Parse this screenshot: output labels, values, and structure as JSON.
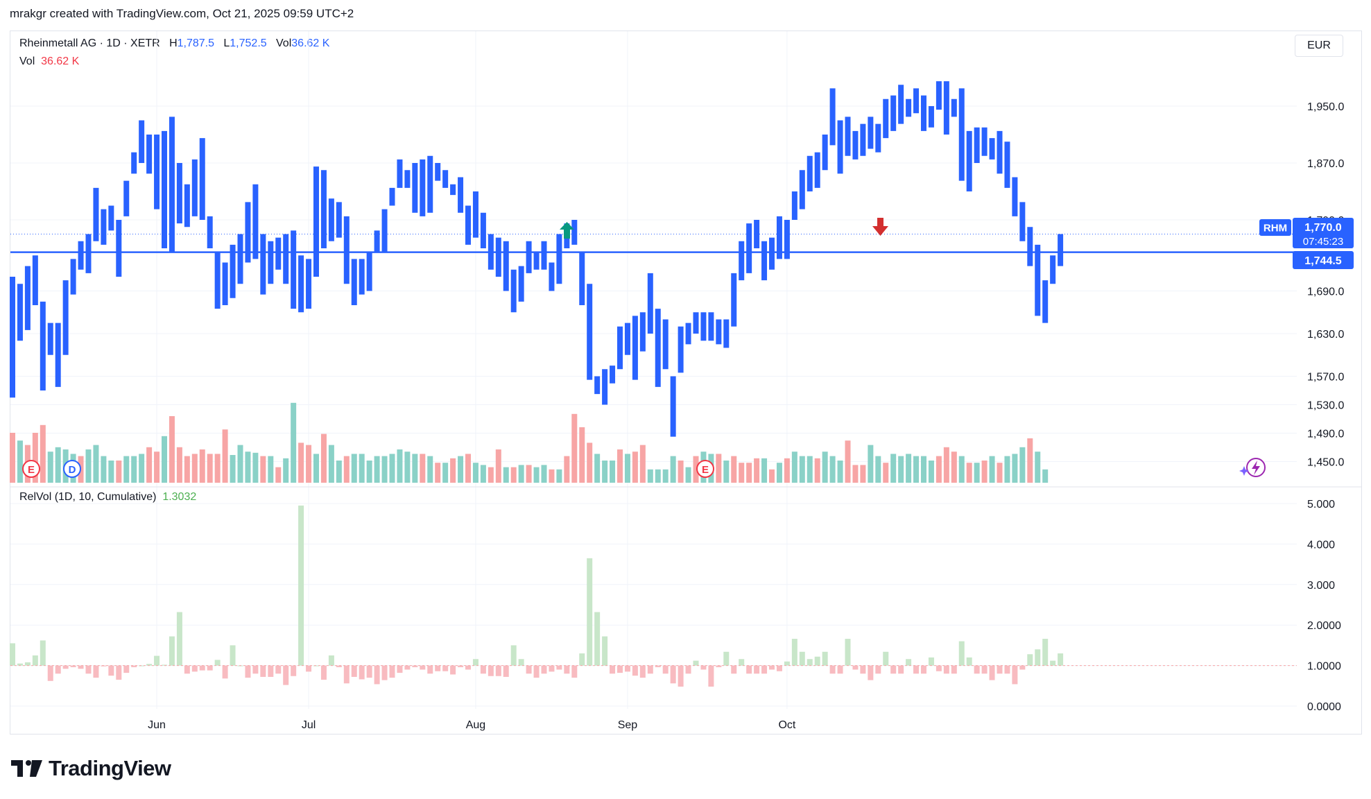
{
  "header": {
    "attribution": "mrakgr created with TradingView.com, Oct 21, 2025 09:59 UTC+2"
  },
  "legend": {
    "symbol": "Rheinmetall AG · 1D · XETR",
    "h_label": "H",
    "h_value": "1,787.5",
    "l_label": "L",
    "l_value": "1,752.5",
    "vol_label": "Vol",
    "vol_value": "36.62 K",
    "vol_row_label": "Vol",
    "vol_row_value": "36.62 K"
  },
  "currency": "EUR",
  "badges": {
    "ticker": "RHM",
    "price": "1,770.0",
    "countdown": "07:45:23",
    "line_price": "1,744.5"
  },
  "relvol": {
    "label": "RelVol (1D, 10, Cumulative)",
    "value": "1.3032"
  },
  "events": {
    "earnings": "E",
    "dividend": "D"
  },
  "logo": {
    "text": "TradingView"
  },
  "colors": {
    "bar": "#2962ff",
    "up_vol": "#8ad1c7",
    "down_vol": "#f7a5a5",
    "relvol_up": "#c8e6c9",
    "relvol_down": "#f8bbc0",
    "line": "#2962ff"
  },
  "chart_data": [
    {
      "type": "bar",
      "title": "Rheinmetall AG · 1D · XETR",
      "price_ticks": [
        "1,950.0",
        "1,870.0",
        "1,790.0",
        "1,690.0",
        "1,630.0",
        "1,570.0",
        "1,530.0",
        "1,490.0",
        "1,450.0"
      ],
      "x_ticks": [
        {
          "label": "Jun",
          "index": 19
        },
        {
          "label": "Jul",
          "index": 39
        },
        {
          "label": "Aug",
          "index": 61
        },
        {
          "label": "Sep",
          "index": 81
        },
        {
          "label": "Oct",
          "index": 102
        }
      ],
      "ylim": [
        1430,
        2010
      ],
      "horizontal_line": 1744.5,
      "last_price_dotted": 1770.0,
      "range_bars": [
        [
          1540,
          1710
        ],
        [
          1620,
          1700
        ],
        [
          1635,
          1725
        ],
        [
          1670,
          1740
        ],
        [
          1550,
          1675
        ],
        [
          1600,
          1645
        ],
        [
          1555,
          1645
        ],
        [
          1600,
          1705
        ],
        [
          1685,
          1735
        ],
        [
          1720,
          1760
        ],
        [
          1715,
          1770
        ],
        [
          1760,
          1835
        ],
        [
          1755,
          1805
        ],
        [
          1775,
          1810
        ],
        [
          1710,
          1790
        ],
        [
          1795,
          1845
        ],
        [
          1855,
          1885
        ],
        [
          1870,
          1930
        ],
        [
          1855,
          1910
        ],
        [
          1805,
          1910
        ],
        [
          1750,
          1915
        ],
        [
          1745,
          1935
        ],
        [
          1785,
          1870
        ],
        [
          1780,
          1840
        ],
        [
          1795,
          1875
        ],
        [
          1790,
          1905
        ],
        [
          1750,
          1795
        ],
        [
          1665,
          1745
        ],
        [
          1670,
          1730
        ],
        [
          1680,
          1755
        ],
        [
          1700,
          1770
        ],
        [
          1730,
          1815
        ],
        [
          1735,
          1840
        ],
        [
          1685,
          1770
        ],
        [
          1700,
          1760
        ],
        [
          1720,
          1765
        ],
        [
          1700,
          1770
        ],
        [
          1665,
          1775
        ],
        [
          1660,
          1740
        ],
        [
          1665,
          1735
        ],
        [
          1710,
          1865
        ],
        [
          1750,
          1860
        ],
        [
          1760,
          1820
        ],
        [
          1765,
          1815
        ],
        [
          1700,
          1795
        ],
        [
          1670,
          1735
        ],
        [
          1685,
          1735
        ],
        [
          1690,
          1745
        ],
        [
          1745,
          1775
        ],
        [
          1745,
          1805
        ],
        [
          1810,
          1835
        ],
        [
          1835,
          1875
        ],
        [
          1835,
          1860
        ],
        [
          1800,
          1870
        ],
        [
          1795,
          1875
        ],
        [
          1800,
          1880
        ],
        [
          1845,
          1870
        ],
        [
          1835,
          1860
        ],
        [
          1825,
          1840
        ],
        [
          1800,
          1850
        ],
        [
          1755,
          1810
        ],
        [
          1765,
          1830
        ],
        [
          1750,
          1800
        ],
        [
          1720,
          1770
        ],
        [
          1710,
          1765
        ],
        [
          1690,
          1760
        ],
        [
          1660,
          1720
        ],
        [
          1675,
          1725
        ],
        [
          1715,
          1760
        ],
        [
          1720,
          1745
        ],
        [
          1720,
          1760
        ],
        [
          1690,
          1730
        ],
        [
          1700,
          1770
        ],
        [
          1750,
          1785
        ],
        [
          1755,
          1790
        ],
        [
          1670,
          1745
        ],
        [
          1565,
          1700
        ],
        [
          1545,
          1570
        ],
        [
          1530,
          1580
        ],
        [
          1560,
          1585
        ],
        [
          1580,
          1640
        ],
        [
          1600,
          1645
        ],
        [
          1565,
          1655
        ],
        [
          1605,
          1660
        ],
        [
          1630,
          1715
        ],
        [
          1555,
          1665
        ],
        [
          1580,
          1650
        ],
        [
          1485,
          1570
        ],
        [
          1575,
          1640
        ],
        [
          1615,
          1645
        ],
        [
          1630,
          1660
        ],
        [
          1620,
          1660
        ],
        [
          1620,
          1660
        ],
        [
          1615,
          1650
        ],
        [
          1610,
          1650
        ],
        [
          1640,
          1715
        ],
        [
          1705,
          1760
        ],
        [
          1715,
          1785
        ],
        [
          1750,
          1790
        ],
        [
          1705,
          1760
        ],
        [
          1720,
          1765
        ],
        [
          1735,
          1795
        ],
        [
          1735,
          1790
        ],
        [
          1790,
          1830
        ],
        [
          1805,
          1860
        ],
        [
          1830,
          1880
        ],
        [
          1835,
          1885
        ],
        [
          1860,
          1910
        ],
        [
          1895,
          1975
        ],
        [
          1855,
          1930
        ],
        [
          1880,
          1935
        ],
        [
          1875,
          1915
        ],
        [
          1880,
          1925
        ],
        [
          1890,
          1935
        ],
        [
          1885,
          1925
        ],
        [
          1905,
          1960
        ],
        [
          1915,
          1965
        ],
        [
          1925,
          1980
        ],
        [
          1935,
          1960
        ],
        [
          1940,
          1975
        ],
        [
          1915,
          1965
        ],
        [
          1920,
          1950
        ],
        [
          1945,
          1985
        ],
        [
          1910,
          1985
        ],
        [
          1935,
          1960
        ],
        [
          1845,
          1975
        ],
        [
          1830,
          1915
        ],
        [
          1870,
          1920
        ],
        [
          1880,
          1920
        ],
        [
          1875,
          1905
        ],
        [
          1855,
          1915
        ],
        [
          1835,
          1900
        ],
        [
          1795,
          1850
        ],
        [
          1760,
          1815
        ],
        [
          1725,
          1780
        ],
        [
          1655,
          1755
        ],
        [
          1645,
          1705
        ],
        [
          1700,
          1740
        ],
        [
          1725,
          1770
        ]
      ],
      "volume_bars": [
        [
          "d",
          45
        ],
        [
          "u",
          38
        ],
        [
          "d",
          34
        ],
        [
          "d",
          45
        ],
        [
          "d",
          52
        ],
        [
          "u",
          28
        ],
        [
          "u",
          32
        ],
        [
          "u",
          30
        ],
        [
          "u",
          26
        ],
        [
          "d",
          24
        ],
        [
          "u",
          30
        ],
        [
          "u",
          34
        ],
        [
          "u",
          24
        ],
        [
          "u",
          20
        ],
        [
          "d",
          20
        ],
        [
          "u",
          24
        ],
        [
          "u",
          24
        ],
        [
          "u",
          26
        ],
        [
          "d",
          32
        ],
        [
          "d",
          28
        ],
        [
          "u",
          42
        ],
        [
          "d",
          60
        ],
        [
          "d",
          32
        ],
        [
          "d",
          24
        ],
        [
          "d",
          26
        ],
        [
          "d",
          30
        ],
        [
          "d",
          26
        ],
        [
          "d",
          26
        ],
        [
          "d",
          48
        ],
        [
          "u",
          25
        ],
        [
          "u",
          34
        ],
        [
          "u",
          28
        ],
        [
          "u",
          27
        ],
        [
          "d",
          24
        ],
        [
          "u",
          24
        ],
        [
          "d",
          14
        ],
        [
          "u",
          22
        ],
        [
          "u",
          72
        ],
        [
          "d",
          36
        ],
        [
          "d",
          34
        ],
        [
          "u",
          26
        ],
        [
          "d",
          44
        ],
        [
          "u",
          34
        ],
        [
          "u",
          20
        ],
        [
          "d",
          24
        ],
        [
          "u",
          26
        ],
        [
          "u",
          26
        ],
        [
          "u",
          20
        ],
        [
          "u",
          24
        ],
        [
          "u",
          24
        ],
        [
          "u",
          26
        ],
        [
          "u",
          30
        ],
        [
          "u",
          28
        ],
        [
          "u",
          26
        ],
        [
          "d",
          26
        ],
        [
          "u",
          24
        ],
        [
          "d",
          18
        ],
        [
          "u",
          18
        ],
        [
          "d",
          22
        ],
        [
          "u",
          24
        ],
        [
          "d",
          26
        ],
        [
          "u",
          18
        ],
        [
          "u",
          16
        ],
        [
          "d",
          14
        ],
        [
          "d",
          30
        ],
        [
          "u",
          14
        ],
        [
          "d",
          14
        ],
        [
          "u",
          16
        ],
        [
          "d",
          16
        ],
        [
          "u",
          14
        ],
        [
          "u",
          16
        ],
        [
          "d",
          12
        ],
        [
          "u",
          12
        ],
        [
          "d",
          24
        ],
        [
          "d",
          62
        ],
        [
          "d",
          50
        ],
        [
          "d",
          36
        ],
        [
          "u",
          26
        ],
        [
          "u",
          20
        ],
        [
          "u",
          20
        ],
        [
          "d",
          30
        ],
        [
          "u",
          26
        ],
        [
          "d",
          28
        ],
        [
          "d",
          34
        ],
        [
          "u",
          12
        ],
        [
          "u",
          12
        ],
        [
          "u",
          12
        ],
        [
          "u",
          24
        ],
        [
          "d",
          20
        ],
        [
          "u",
          14
        ],
        [
          "d",
          24
        ],
        [
          "u",
          28
        ],
        [
          "u",
          26
        ],
        [
          "d",
          26
        ],
        [
          "u",
          20
        ],
        [
          "d",
          24
        ],
        [
          "d",
          18
        ],
        [
          "d",
          18
        ],
        [
          "d",
          22
        ],
        [
          "u",
          22
        ],
        [
          "d",
          12
        ],
        [
          "u",
          18
        ],
        [
          "d",
          22
        ],
        [
          "u",
          28
        ],
        [
          "u",
          24
        ],
        [
          "u",
          24
        ],
        [
          "d",
          22
        ],
        [
          "u",
          28
        ],
        [
          "u",
          24
        ],
        [
          "u",
          20
        ],
        [
          "d",
          38
        ],
        [
          "d",
          16
        ],
        [
          "d",
          16
        ],
        [
          "u",
          34
        ],
        [
          "u",
          24
        ],
        [
          "d",
          18
        ],
        [
          "u",
          26
        ],
        [
          "u",
          24
        ],
        [
          "u",
          26
        ],
        [
          "u",
          24
        ],
        [
          "u",
          24
        ],
        [
          "u",
          20
        ],
        [
          "d",
          24
        ],
        [
          "d",
          32
        ],
        [
          "d",
          28
        ],
        [
          "u",
          24
        ],
        [
          "d",
          18
        ],
        [
          "u",
          18
        ],
        [
          "d",
          20
        ],
        [
          "u",
          24
        ],
        [
          "d",
          18
        ],
        [
          "u",
          24
        ],
        [
          "u",
          26
        ],
        [
          "u",
          32
        ],
        [
          "d",
          40
        ],
        [
          "u",
          28
        ],
        [
          "u",
          12
        ]
      ]
    },
    {
      "type": "bar",
      "title": "RelVol (1D, 10, Cumulative)",
      "ylim": [
        0,
        5.2
      ],
      "y_ticks": [
        "5.000",
        "4.000",
        "3.000",
        "2.0000",
        "1.0000",
        "0.0000"
      ],
      "baseline": 1.0,
      "values": [
        1.55,
        1.05,
        1.08,
        1.25,
        1.62,
        0.62,
        0.8,
        0.92,
        0.96,
        0.92,
        0.8,
        0.7,
        0.98,
        0.75,
        0.65,
        0.82,
        0.96,
        1.0,
        1.04,
        1.24,
        1.02,
        1.72,
        2.32,
        0.8,
        0.85,
        0.88,
        0.88,
        1.14,
        0.68,
        1.5,
        1.0,
        0.7,
        0.8,
        0.72,
        0.72,
        0.8,
        0.52,
        0.74,
        4.95,
        0.85,
        1.0,
        0.65,
        1.25,
        0.96,
        0.56,
        0.72,
        0.66,
        0.7,
        0.54,
        0.64,
        0.7,
        0.82,
        0.9,
        0.96,
        0.9,
        0.8,
        0.86,
        0.86,
        0.78,
        0.96,
        0.9,
        1.16,
        0.8,
        0.74,
        0.74,
        0.72,
        1.5,
        1.16,
        0.8,
        0.7,
        0.8,
        0.85,
        0.9,
        0.8,
        0.7,
        1.3,
        3.65,
        2.32,
        1.72,
        0.8,
        0.82,
        0.85,
        0.75,
        0.7,
        0.8,
        0.96,
        0.8,
        0.56,
        0.48,
        0.8,
        1.12,
        0.9,
        0.48,
        0.96,
        1.34,
        0.8,
        1.16,
        0.8,
        0.8,
        0.8,
        0.9,
        0.86,
        1.1,
        1.66,
        1.34,
        1.16,
        1.22,
        1.34,
        0.8,
        0.8,
        1.66,
        0.9,
        0.8,
        0.64,
        0.8,
        1.34,
        0.8,
        0.8,
        1.16,
        0.8,
        0.8,
        1.2,
        0.86,
        0.8,
        0.8,
        1.6,
        1.2,
        0.8,
        0.8,
        0.64,
        0.8,
        0.8,
        0.54,
        0.9,
        1.28,
        1.4,
        1.66,
        1.12,
        1.3
      ]
    }
  ]
}
